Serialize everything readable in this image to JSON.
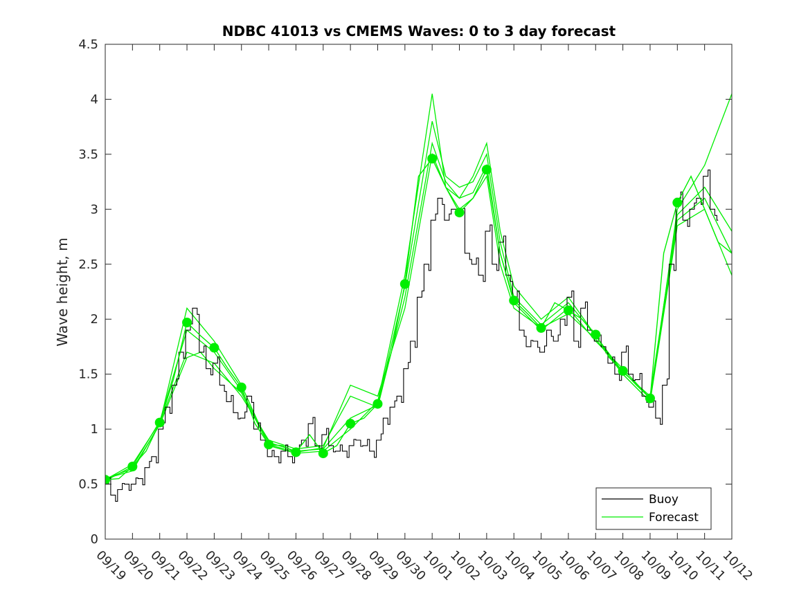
{
  "chart_data": {
    "type": "line",
    "title": "NDBC 41013 vs CMEMS Waves: 0 to 3 day forecast",
    "xlabel": "",
    "ylabel": "Wave height, m",
    "x_ticks": [
      "09/19",
      "09/20",
      "09/21",
      "09/22",
      "09/23",
      "09/24",
      "09/25",
      "09/26",
      "09/27",
      "09/28",
      "09/29",
      "09/30",
      "10/01",
      "10/02",
      "10/03",
      "10/04",
      "10/05",
      "10/06",
      "10/07",
      "10/08",
      "10/09",
      "10/10",
      "10/11",
      "10/12"
    ],
    "y_ticks": [
      "0",
      "0.5",
      "1",
      "1.5",
      "2",
      "2.5",
      "3",
      "3.5",
      "4",
      "4.5"
    ],
    "xlim_days": [
      0,
      23
    ],
    "ylim": [
      0,
      4.5
    ],
    "grid": false,
    "legend": {
      "position": "bottom-right",
      "entries": [
        "Buoy",
        "Forecast"
      ]
    },
    "colors": {
      "buoy": "#000000",
      "forecast": "#00ee00"
    },
    "series": [
      {
        "name": "Buoy",
        "x": [
          0,
          0.25,
          0.5,
          0.75,
          1,
          1.25,
          1.5,
          1.75,
          2,
          2.25,
          2.5,
          2.75,
          3,
          3.25,
          3.5,
          3.75,
          4,
          4.25,
          4.5,
          4.75,
          5,
          5.25,
          5.5,
          5.75,
          6,
          6.25,
          6.5,
          6.75,
          7,
          7.25,
          7.5,
          7.75,
          8,
          8.25,
          8.5,
          8.75,
          9,
          9.25,
          9.5,
          9.75,
          10,
          10.25,
          10.5,
          10.75,
          11,
          11.25,
          11.5,
          11.75,
          12,
          12.25,
          12.5,
          12.75,
          13,
          13.25,
          13.5,
          13.75,
          14,
          14.25,
          14.5,
          14.75,
          15,
          15.25,
          15.5,
          15.75,
          16,
          16.25,
          16.5,
          16.75,
          17,
          17.25,
          17.5,
          17.75,
          18,
          18.25,
          18.5,
          18.75,
          19,
          19.25,
          19.5,
          19.75,
          20,
          20.25,
          20.5,
          20.75,
          21,
          21.25,
          21.5,
          21.75,
          22,
          22.25,
          22.5
        ],
        "y": [
          0.5,
          0.4,
          0.45,
          0.5,
          0.5,
          0.55,
          0.65,
          0.75,
          1.0,
          1.2,
          1.4,
          1.7,
          1.9,
          2.1,
          1.7,
          1.55,
          1.6,
          1.4,
          1.25,
          1.15,
          1.1,
          1.3,
          1.0,
          0.9,
          0.75,
          0.75,
          0.8,
          0.75,
          0.8,
          0.9,
          1.05,
          0.85,
          0.95,
          0.85,
          0.8,
          0.8,
          0.85,
          0.9,
          0.85,
          0.8,
          0.9,
          1.1,
          1.2,
          1.3,
          1.55,
          1.8,
          2.2,
          2.5,
          2.9,
          3.1,
          2.9,
          3.0,
          2.95,
          2.6,
          2.5,
          2.4,
          2.8,
          2.5,
          2.7,
          2.4,
          2.2,
          1.9,
          1.75,
          1.8,
          1.7,
          1.9,
          1.8,
          2.0,
          2.2,
          1.8,
          2.1,
          1.9,
          1.8,
          1.75,
          1.6,
          1.5,
          1.7,
          1.5,
          1.45,
          1.3,
          1.2,
          1.1,
          1.4,
          2.5,
          3.1,
          2.9,
          3.0,
          3.1,
          3.3,
          3.0,
          2.9
        ]
      },
      {
        "name": "Forecast",
        "x": [
          0,
          0.5,
          1,
          1.5,
          2,
          2.5,
          3,
          3.5,
          4,
          4.5,
          5,
          5.5,
          6,
          6.5,
          7,
          7.5,
          8,
          8.5,
          9,
          9.5,
          10,
          10.5,
          11,
          11.5,
          12,
          12.5,
          13,
          13.5,
          14,
          14.5,
          15,
          15.5,
          16,
          16.5,
          17,
          17.5,
          18,
          18.5,
          19,
          19.5,
          20,
          20.5,
          21,
          21.5,
          22,
          22.5,
          23
        ],
        "y": [
          0.54,
          0.55,
          0.66,
          0.8,
          1.06,
          1.45,
          1.97,
          1.85,
          1.74,
          1.55,
          1.38,
          1.05,
          0.86,
          0.85,
          0.79,
          0.95,
          0.78,
          0.85,
          1.05,
          1.1,
          1.23,
          1.7,
          2.32,
          3.3,
          3.46,
          3.2,
          2.97,
          3.1,
          3.36,
          2.6,
          2.17,
          2.05,
          1.92,
          2.15,
          2.08,
          2.0,
          1.86,
          1.65,
          1.53,
          1.4,
          1.28,
          2.6,
          3.06,
          3.3,
          3.0,
          2.7,
          2.6
        ]
      }
    ],
    "series_extra": {
      "Forecast_runs": [
        {
          "x": [
            0,
            1,
            2,
            3,
            3.5,
            4,
            5,
            6,
            7,
            8,
            9,
            10,
            11,
            12,
            12.5,
            13,
            13.5,
            14,
            14.5,
            15,
            16,
            17,
            18,
            19,
            20,
            21,
            22,
            23
          ],
          "y": [
            0.55,
            0.62,
            1.05,
            2.1,
            1.95,
            1.8,
            1.4,
            0.85,
            0.78,
            0.8,
            1.0,
            1.25,
            2.4,
            4.05,
            3.2,
            3.1,
            3.3,
            3.6,
            2.8,
            2.3,
            2.0,
            2.2,
            1.85,
            1.5,
            1.25,
            3.0,
            3.4,
            4.05
          ]
        },
        {
          "x": [
            0,
            1,
            2,
            3,
            3.5,
            4,
            5,
            6,
            7,
            8,
            9,
            10,
            11,
            12,
            12.5,
            13,
            13.5,
            14,
            14.5,
            15,
            16,
            17,
            18,
            19,
            20,
            21,
            22,
            23
          ],
          "y": [
            0.53,
            0.66,
            1.07,
            1.9,
            1.8,
            1.7,
            1.35,
            0.88,
            0.8,
            0.82,
            1.1,
            1.22,
            2.3,
            3.8,
            3.3,
            3.2,
            3.25,
            3.5,
            2.7,
            2.2,
            1.95,
            2.15,
            1.85,
            1.52,
            1.3,
            2.95,
            3.2,
            2.8
          ]
        },
        {
          "x": [
            0,
            1,
            2,
            3,
            3.5,
            4,
            5,
            6,
            7,
            8,
            9,
            10,
            11,
            12,
            12.5,
            13,
            13.5,
            14,
            14.5,
            15,
            16,
            17,
            18,
            19,
            20,
            21,
            22,
            23
          ],
          "y": [
            0.54,
            0.68,
            1.06,
            1.7,
            1.65,
            1.6,
            1.3,
            0.9,
            0.82,
            0.85,
            1.3,
            1.2,
            2.2,
            3.6,
            3.25,
            3.1,
            3.15,
            3.4,
            2.6,
            2.15,
            1.9,
            2.1,
            1.8,
            1.55,
            1.28,
            2.9,
            3.1,
            2.6
          ]
        },
        {
          "x": [
            0,
            1,
            2,
            3,
            3.5,
            4,
            5,
            6,
            7,
            8,
            9,
            10,
            11,
            12,
            12.5,
            13,
            13.5,
            14,
            14.5,
            15,
            16,
            17,
            18,
            19,
            20,
            21,
            22,
            23
          ],
          "y": [
            0.55,
            0.64,
            1.04,
            1.65,
            1.7,
            1.55,
            1.33,
            0.86,
            0.79,
            0.83,
            1.4,
            1.3,
            2.1,
            3.5,
            3.2,
            3.0,
            3.1,
            3.3,
            2.5,
            2.1,
            1.92,
            2.05,
            1.82,
            1.5,
            1.25,
            2.85,
            3.0,
            2.4
          ]
        }
      ]
    }
  }
}
